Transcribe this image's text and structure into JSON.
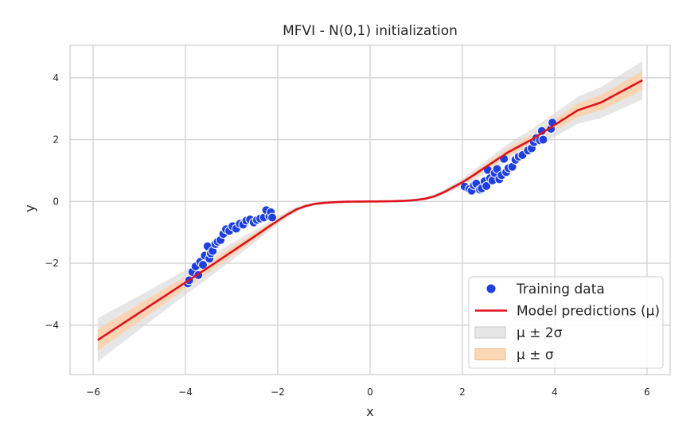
{
  "chart_data": {
    "type": "scatter",
    "title": "MFVI - N(0,1) initialization",
    "xlabel": "x",
    "ylabel": "y",
    "xlim": [
      -6.5,
      6.5
    ],
    "ylim": [
      -5.6,
      5.05
    ],
    "xticks": [
      -6,
      -4,
      -2,
      0,
      2,
      4,
      6
    ],
    "xtick_labels": [
      "−6",
      "−4",
      "−2",
      "0",
      "2",
      "4",
      "6"
    ],
    "yticks": [
      -4,
      -2,
      0,
      2,
      4
    ],
    "ytick_labels": [
      "−4",
      "−2",
      "0",
      "2",
      "4"
    ],
    "grid": true,
    "legend_position": "lower-right",
    "colors": {
      "points": "#1f3fe6",
      "mean": "#e0111b",
      "band_2sigma": "#d9d9d9",
      "band_1sigma": "#fbd0a8",
      "grid": "#d4d4d4",
      "frame": "#cccccc"
    },
    "legend": [
      {
        "label": "Training data",
        "kind": "point"
      },
      {
        "label": "Model predictions (μ)",
        "kind": "line"
      },
      {
        "label": "μ ± 2σ",
        "kind": "band2"
      },
      {
        "label": "μ ± σ",
        "kind": "band1"
      }
    ],
    "series": [
      {
        "name": "Training data",
        "kind": "scatter",
        "x": [
          -3.95,
          -3.92,
          -3.85,
          -3.78,
          -3.72,
          -3.68,
          -3.62,
          -3.58,
          -3.52,
          -3.48,
          -3.45,
          -3.41,
          -3.35,
          -3.3,
          -3.24,
          -3.18,
          -3.12,
          -3.05,
          -2.98,
          -2.9,
          -2.82,
          -2.75,
          -2.68,
          -2.6,
          -2.52,
          -2.45,
          -2.38,
          -2.3,
          -2.25,
          -2.18,
          -2.15,
          -2.12,
          2.05,
          2.15,
          2.2,
          2.25,
          2.3,
          2.38,
          2.42,
          2.48,
          2.52,
          2.55,
          2.6,
          2.65,
          2.7,
          2.75,
          2.8,
          2.85,
          2.9,
          2.95,
          3.0,
          3.08,
          3.15,
          3.22,
          3.3,
          3.42,
          3.5,
          3.55,
          3.6,
          3.68,
          3.72,
          3.75,
          3.92,
          3.95
        ],
        "y": [
          -2.65,
          -2.55,
          -2.28,
          -2.1,
          -2.38,
          -1.95,
          -2.05,
          -1.75,
          -1.45,
          -1.85,
          -1.68,
          -1.6,
          -1.38,
          -1.3,
          -1.25,
          -1.05,
          -0.9,
          -0.95,
          -0.8,
          -0.88,
          -0.72,
          -0.75,
          -0.62,
          -0.58,
          -0.68,
          -0.6,
          -0.55,
          -0.52,
          -0.28,
          -0.48,
          -0.35,
          -0.52,
          0.48,
          0.4,
          0.35,
          0.52,
          0.58,
          0.38,
          0.42,
          0.65,
          0.5,
          1.02,
          0.75,
          0.68,
          0.92,
          1.05,
          0.72,
          0.85,
          1.38,
          0.95,
          1.08,
          1.12,
          1.35,
          1.45,
          1.5,
          1.65,
          1.72,
          1.92,
          2.05,
          1.98,
          2.28,
          2.0,
          2.35,
          2.55
        ]
      },
      {
        "name": "Model predictions (μ)",
        "kind": "line",
        "x": [
          -5.9,
          -5.5,
          -5.0,
          -4.5,
          -4.0,
          -3.5,
          -3.0,
          -2.5,
          -2.2,
          -2.0,
          -1.8,
          -1.6,
          -1.4,
          -1.2,
          -1.0,
          -0.8,
          -0.6,
          -0.4,
          -0.2,
          0.0,
          0.2,
          0.4,
          0.6,
          0.8,
          1.0,
          1.2,
          1.4,
          1.6,
          1.8,
          2.0,
          2.2,
          2.5,
          3.0,
          3.5,
          4.0,
          4.5,
          5.0,
          5.5,
          5.9
        ],
        "y": [
          -4.48,
          -4.09,
          -3.6,
          -3.11,
          -2.62,
          -2.13,
          -1.63,
          -1.13,
          -0.82,
          -0.62,
          -0.43,
          -0.26,
          -0.15,
          -0.08,
          -0.045,
          -0.025,
          -0.012,
          -0.005,
          -0.002,
          0.0,
          0.002,
          0.005,
          0.012,
          0.025,
          0.05,
          0.09,
          0.17,
          0.3,
          0.46,
          0.62,
          0.81,
          1.11,
          1.6,
          2.0,
          2.48,
          2.95,
          3.2,
          3.6,
          3.92
        ]
      }
    ],
    "band_2sigma": {
      "x": [
        -5.9,
        -5.0,
        -4.0,
        -3.0,
        -2.2,
        -1.8,
        -1.4,
        -1.0,
        0.0,
        1.0,
        1.4,
        1.8,
        2.2,
        3.0,
        4.0,
        5.0,
        5.9
      ],
      "halfwidth": [
        0.7,
        0.55,
        0.4,
        0.28,
        0.15,
        0.1,
        0.06,
        0.04,
        0.03,
        0.04,
        0.06,
        0.1,
        0.15,
        0.28,
        0.38,
        0.5,
        0.62
      ]
    },
    "band_1sigma": {
      "x": [
        -5.9,
        -5.0,
        -4.0,
        -3.0,
        -2.2,
        -1.8,
        -1.4,
        -1.0,
        0.0,
        1.0,
        1.4,
        1.8,
        2.2,
        3.0,
        4.0,
        5.0,
        5.9
      ],
      "halfwidth": [
        0.35,
        0.28,
        0.2,
        0.14,
        0.08,
        0.05,
        0.03,
        0.02,
        0.015,
        0.02,
        0.03,
        0.05,
        0.08,
        0.14,
        0.19,
        0.25,
        0.31
      ]
    }
  }
}
